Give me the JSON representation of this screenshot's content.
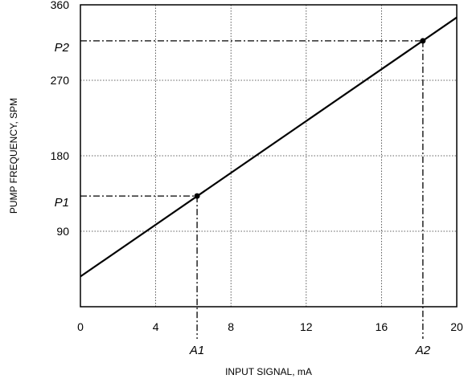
{
  "chart_data": {
    "type": "line",
    "xlabel": "INPUT SIGNAL, mA",
    "ylabel": "PUMP FREQUENCY, SPM",
    "xlim": [
      0,
      20
    ],
    "ylim": [
      0,
      360
    ],
    "x_ticks": [
      0,
      4,
      8,
      12,
      16,
      20
    ],
    "y_ticks": [
      90,
      180,
      270,
      360
    ],
    "x_tick_labels": [
      "0",
      "4",
      "8",
      "12",
      "16",
      "20"
    ],
    "y_tick_labels": [
      "90",
      "180",
      "270",
      "360"
    ],
    "grid": true,
    "series": [
      {
        "x": [
          0,
          20
        ],
        "y": [
          36,
          345
        ]
      }
    ],
    "annotations": [
      {
        "x": 6.2,
        "y": 132,
        "x_label": "A1",
        "y_label": "P1"
      },
      {
        "x": 18.2,
        "y": 317,
        "x_label": "A2",
        "y_label": "P2"
      }
    ]
  }
}
